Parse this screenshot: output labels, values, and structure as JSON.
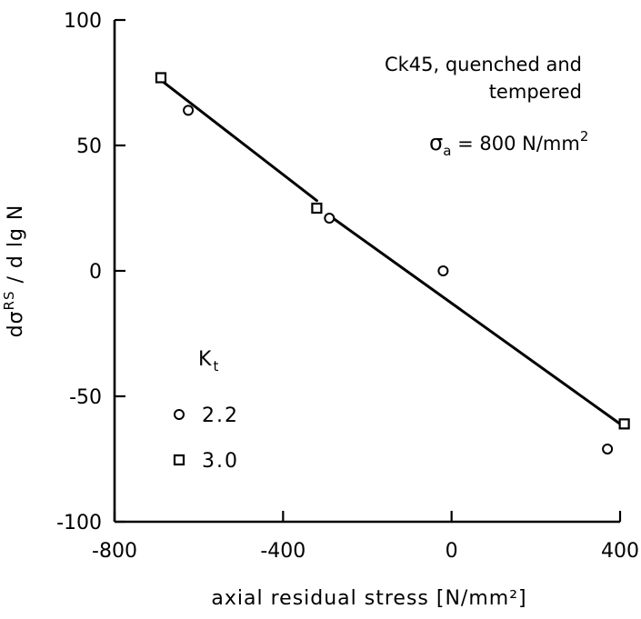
{
  "chart_data": {
    "type": "scatter",
    "xlabel": "axial residual stress [N/mm²]",
    "ylabel": "dσ^RS / d lg N",
    "xlim": [
      -800,
      400
    ],
    "ylim": [
      -100,
      100
    ],
    "x_ticks": [
      -800,
      -400,
      0,
      400
    ],
    "y_ticks": [
      100,
      50,
      0,
      -50,
      -100
    ],
    "grid": false,
    "annotation": {
      "line1": "Ck45, quenched and",
      "line2": "tempered",
      "stress_symbol": "σ",
      "stress_sub": "a",
      "stress_value": " = 800 N/mm",
      "stress_sup": "2"
    },
    "legend": {
      "title": "K",
      "title_sub": "t",
      "placement": "lower-left"
    },
    "series": [
      {
        "name": "2.2",
        "marker": "circle",
        "points": [
          [
            -625,
            64
          ],
          [
            -290,
            21
          ],
          [
            -20,
            0
          ],
          [
            370,
            -71
          ]
        ]
      },
      {
        "name": "3.0",
        "marker": "square",
        "points": [
          [
            -690,
            77
          ],
          [
            -320,
            25
          ],
          [
            410,
            -61
          ]
        ]
      }
    ],
    "fit_line": [
      {
        "from": [
          -690,
          76
        ],
        "to": [
          -320,
          28
        ]
      },
      {
        "from": [
          -290,
          22
        ],
        "to": [
          400,
          -61
        ]
      }
    ]
  }
}
